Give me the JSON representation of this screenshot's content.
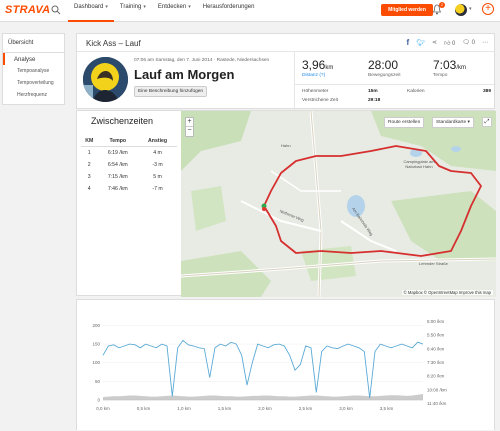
{
  "nav": {
    "logo": "STRAVA",
    "items": [
      {
        "label": "Dashboard",
        "caret": "▾",
        "active": true
      },
      {
        "label": "Training",
        "caret": "▾",
        "active": false
      },
      {
        "label": "Entdecken",
        "caret": "▾",
        "active": false
      },
      {
        "label": "Herausforderungen",
        "caret": "",
        "active": false
      }
    ],
    "upgrade_label": "Mitglied werden",
    "notification_count": "2",
    "colors": {
      "accent": "#fc4c02"
    }
  },
  "sidebar": {
    "overview": "Übersicht",
    "analysis": "Analyse",
    "sub_items": [
      "Tempoanalyse",
      "Tempoverteilung",
      "Herzfrequenz"
    ]
  },
  "activity": {
    "heading": "Kick Ass – Lauf",
    "date_line": "07:06 am Samstag, den 7. Juni 2014 · Rastede, Niedersachsen",
    "title": "Lauf am Morgen",
    "desc_button": "Eine Beschreibung hinzufügen",
    "kudos": "0",
    "comments": "0",
    "stats": {
      "distance": {
        "value": "3,96",
        "unit": "km",
        "label": "Distanz (?)"
      },
      "moving_time": {
        "value": "28:00",
        "label": "Bewegungszeit"
      },
      "pace": {
        "value": "7:03",
        "unit": "/km",
        "label": "Tempo"
      },
      "elevation": {
        "label": "Höhenmeter",
        "value": "15m"
      },
      "elapsed": {
        "label": "Verstrichene Zeit",
        "value": "29:18"
      },
      "calories": {
        "label": "Kalorien",
        "value": "389"
      }
    }
  },
  "splits": {
    "title": "Zwischenzeiten",
    "headers": [
      "KM",
      "Tempo",
      "Anstieg"
    ],
    "rows": [
      [
        "1",
        "6:19 /km",
        "4 m"
      ],
      [
        "2",
        "6:54 /km",
        "-3 m"
      ],
      [
        "3",
        "7:15 /km",
        "5 m"
      ],
      [
        "4",
        "7:46 /km",
        "-7 m"
      ]
    ]
  },
  "map": {
    "zoom_in": "+",
    "zoom_out": "−",
    "route_button": "Route erstellen",
    "style_button": "Standardkarte ▾",
    "attribution": "© Mapbox © OpenStreetMap Improve this map",
    "labels": [
      "Hahn",
      "Campingplatz am Naturbad Hahn",
      "Lehmder Straße",
      "Nethener Weg",
      "Am Bahnhofs Weg"
    ]
  },
  "chart_data": {
    "type": "line",
    "x_ticks": [
      "0,0 km",
      "0,5 km",
      "1,0 km",
      "1,5 km",
      "2,0 km",
      "2,5 km",
      "3,0 km",
      "3,5 km"
    ],
    "y_left_ticks": [
      "200",
      "150",
      "100",
      "50",
      "0"
    ],
    "y_right_ticks": [
      "5:00 /km",
      "5:50 /km",
      "6:40 /km",
      "7:30 /km",
      "8:20 /km",
      "10:00 /km",
      "11:40 /km"
    ],
    "series": [
      {
        "values": [
          120,
          145,
          148,
          140,
          145,
          150,
          148,
          140,
          150,
          145,
          140,
          150,
          145,
          10,
          140,
          160,
          148,
          145,
          140,
          138,
          60,
          140,
          150,
          145,
          155,
          150,
          120,
          40,
          100,
          150,
          145,
          140,
          148,
          150,
          145,
          120,
          80,
          95,
          145,
          140,
          20,
          130,
          145,
          140,
          138,
          145,
          150,
          145,
          140,
          130,
          5,
          130,
          150,
          145,
          140,
          145,
          150,
          145,
          140,
          155,
          150
        ],
        "color": "#5aa9d6"
      },
      {
        "values": [
          8,
          9,
          10,
          10,
          11,
          12,
          12,
          11,
          10,
          9,
          9,
          10,
          11,
          12,
          11,
          10,
          9,
          9,
          10,
          11,
          12,
          12,
          11,
          10,
          10,
          9,
          9,
          10,
          11,
          11,
          12,
          12,
          11,
          10,
          10,
          9,
          9,
          10,
          11,
          12,
          12,
          11,
          10,
          9,
          9,
          10,
          11,
          12,
          12,
          11,
          10,
          10,
          11,
          12,
          13,
          13,
          12,
          11,
          12,
          14,
          16
        ],
        "color": "#cccccc"
      }
    ],
    "ylim": [
      0,
      220
    ]
  }
}
